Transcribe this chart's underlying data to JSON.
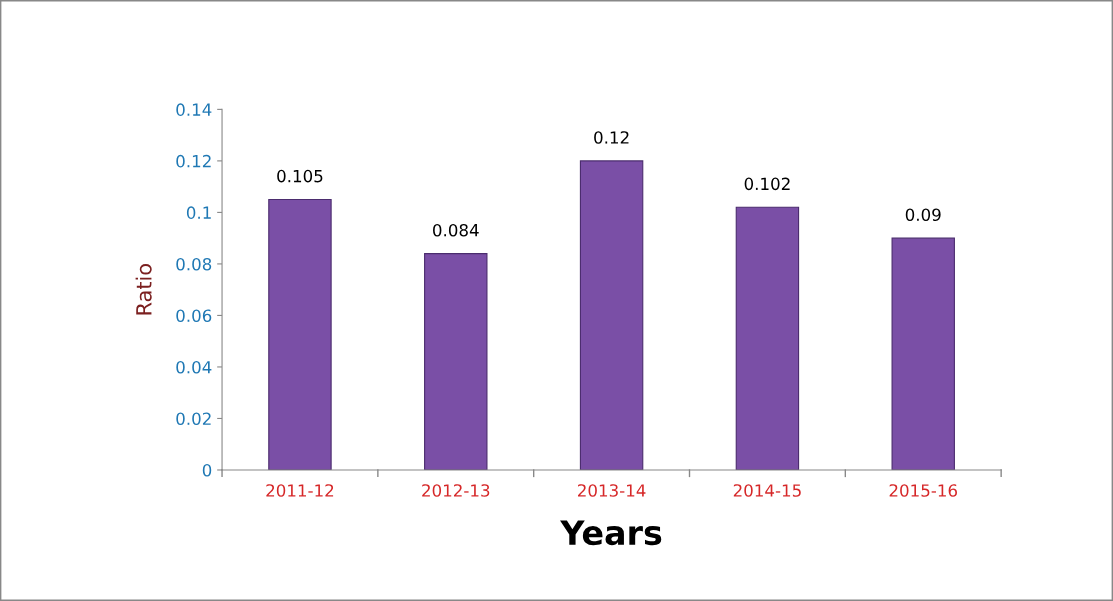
{
  "chart_data": {
    "type": "bar",
    "xlabel": "Years",
    "ylabel": "Ratio",
    "categories": [
      "2011-12",
      "2012-13",
      "2013-14",
      "2014-15",
      "2015-16"
    ],
    "values": [
      0.105,
      0.084,
      0.12,
      0.102,
      0.09
    ],
    "color": "#7a4fa6",
    "ylim": [
      0,
      0.14
    ],
    "yticks": [
      0,
      0.02,
      0.04,
      0.06,
      0.08,
      0.1,
      0.12,
      0.14
    ],
    "grid": false,
    "data_labels": true
  }
}
